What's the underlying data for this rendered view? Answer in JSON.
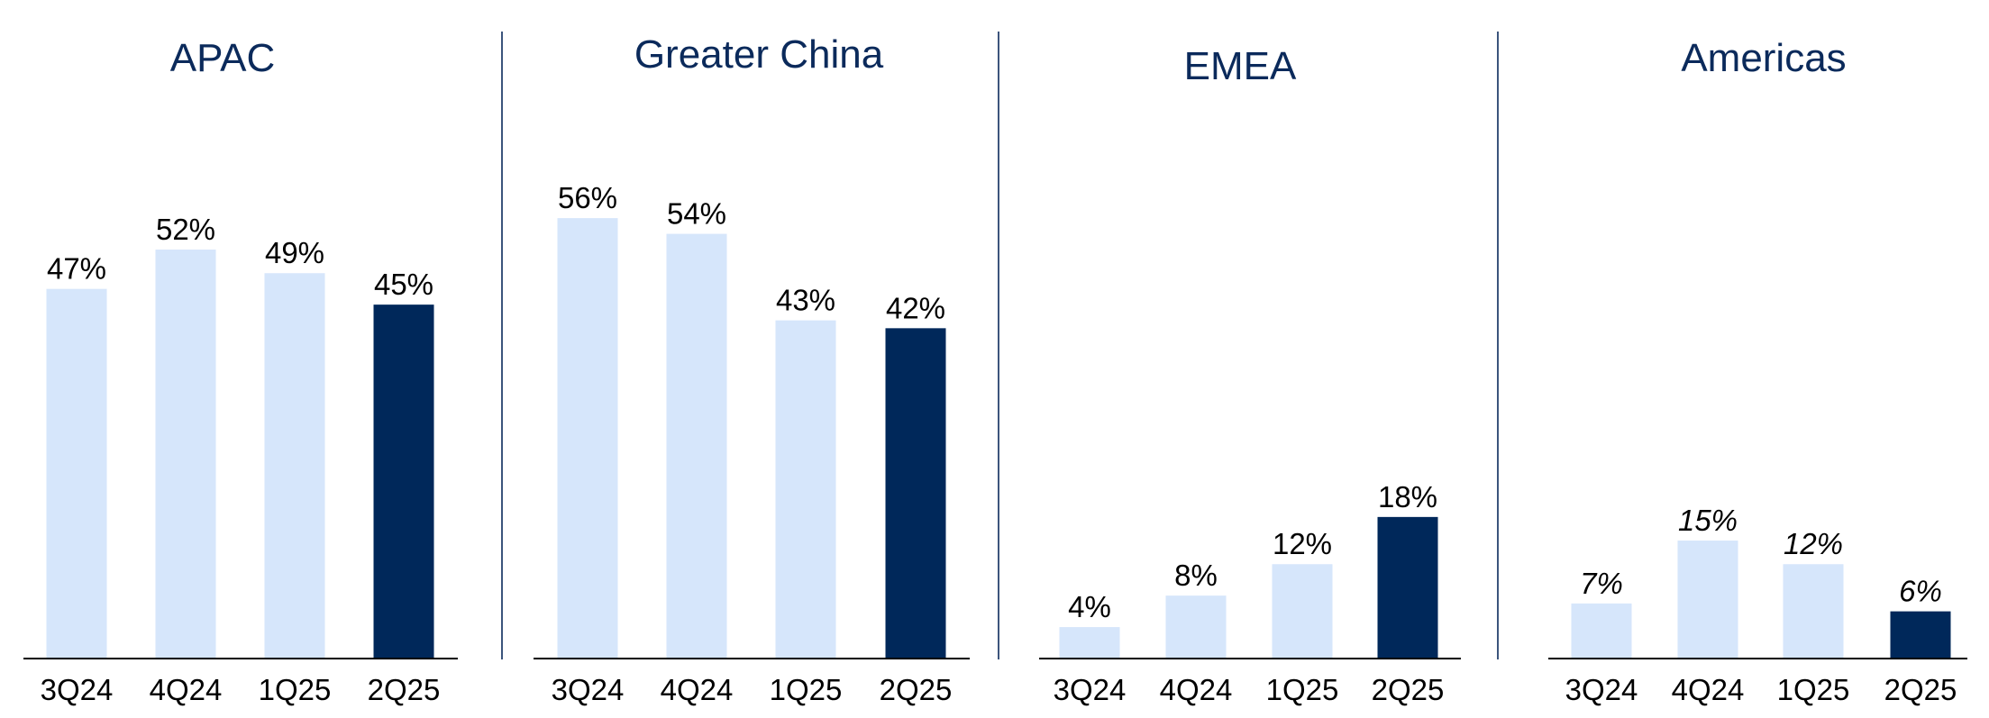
{
  "colors": {
    "title": "#0b2a5b",
    "bar_prior": "#d6e6fb",
    "bar_current": "#00285a",
    "axis": "#000000",
    "divider": "#0b2a5b"
  },
  "chart_data": [
    {
      "type": "bar",
      "title": "APAC",
      "categories": [
        "3Q24",
        "4Q24",
        "1Q25",
        "2Q25"
      ],
      "values": [
        47,
        52,
        49,
        45
      ],
      "labels": [
        "47%",
        "52%",
        "49%",
        "45%"
      ],
      "label_style": "normal",
      "highlight_index": 3,
      "ylim": [
        0,
        60
      ],
      "grid": false
    },
    {
      "type": "bar",
      "title": "Greater China",
      "categories": [
        "3Q24",
        "4Q24",
        "1Q25",
        "2Q25"
      ],
      "values": [
        56,
        54,
        43,
        42
      ],
      "labels": [
        "56%",
        "54%",
        "43%",
        "42%"
      ],
      "label_style": "normal",
      "highlight_index": 3,
      "ylim": [
        0,
        60
      ],
      "grid": false
    },
    {
      "type": "bar",
      "title": "EMEA",
      "categories": [
        "3Q24",
        "4Q24",
        "1Q25",
        "2Q25"
      ],
      "values": [
        4,
        8,
        12,
        18
      ],
      "labels": [
        "4%",
        "8%",
        "12%",
        "18%"
      ],
      "label_style": "normal",
      "highlight_index": 3,
      "ylim": [
        0,
        60
      ],
      "grid": false
    },
    {
      "type": "bar",
      "title": "Americas",
      "categories": [
        "3Q24",
        "4Q24",
        "1Q25",
        "2Q25"
      ],
      "values": [
        7,
        15,
        12,
        6
      ],
      "labels": [
        "7%",
        "15%",
        "12%",
        "6%"
      ],
      "label_style": "italic",
      "highlight_index": 3,
      "ylim": [
        0,
        60
      ],
      "grid": false
    }
  ]
}
